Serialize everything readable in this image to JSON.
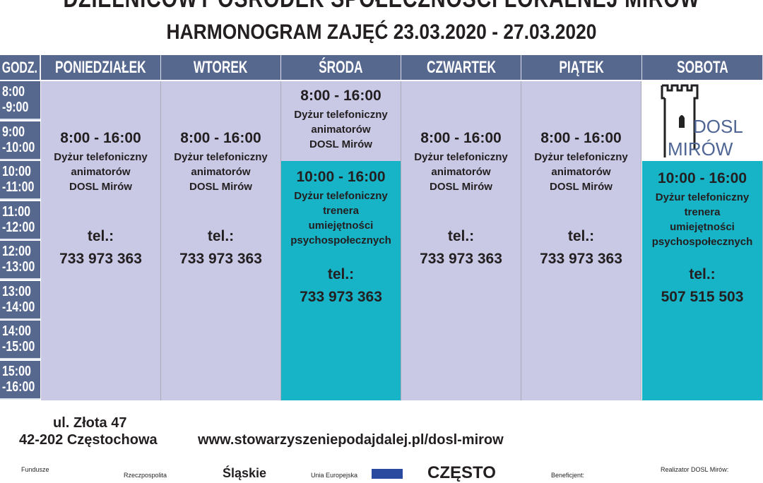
{
  "header": {
    "title": "DZIELNICOWY OŚRODEK SPOŁECZNOŚCI LOKALNEJ MIRÓW",
    "subtitle": "HARMONOGRAM ZAJĘĆ 23.03.2020 - 27.03.2020"
  },
  "table": {
    "columns": [
      "GODZ.",
      "PONIEDZIAŁEK",
      "WTOREK",
      "ŚRODA",
      "CZWARTEK",
      "PIĄTEK",
      "SOBOTA"
    ],
    "times": [
      [
        "8:00",
        "-9:00"
      ],
      [
        "9:00",
        "-10:00"
      ],
      [
        "10:00",
        "-11:00"
      ],
      [
        "11:00",
        "-12:00"
      ],
      [
        "12:00",
        "-13:00"
      ],
      [
        "13:00",
        "-14:00"
      ],
      [
        "14:00",
        "-15:00"
      ],
      [
        "15:00",
        "-16:00"
      ]
    ],
    "animators": {
      "hours": "8:00 - 16:00",
      "line1": "Dyżur telefoniczny",
      "line2": "animatorów",
      "line3": "DOSL Mirów",
      "tel_label": "tel.:",
      "tel": "733 973 363"
    },
    "trainer_wed": {
      "hours": "10:00 - 16:00",
      "line1": "Dyżur telefoniczny",
      "line2": "trenera",
      "line3": "umiejętności",
      "line4": "psychospołecznych",
      "tel_label": "tel.:",
      "tel": "733 973 363"
    },
    "trainer_sat": {
      "hours": "10:00 - 16:00",
      "line1": "Dyżur telefoniczny",
      "line2": "trenera",
      "line3": "umiejętności",
      "line4": "psychospołecznych",
      "tel_label": "tel.:",
      "tel": "507 515 503"
    },
    "logo": {
      "line1": "DOSL",
      "line2": "MIRÓW"
    }
  },
  "colors": {
    "header": "#57688f",
    "lavender": "#c9c9e6",
    "teal": "#17b3c7"
  },
  "footer": {
    "street": "ul. Złota 47",
    "city": "42-202 Częstochowa",
    "website": "www.stowarzyszeniepodajdalej.pl/dosl-mirow",
    "logos": [
      "Fundusze",
      "Rzeczpospolita",
      "Śląskie",
      "Unia Europejska",
      "CZĘSTO",
      "Beneficjent:",
      "Realizator DOSL Mirów:"
    ]
  }
}
